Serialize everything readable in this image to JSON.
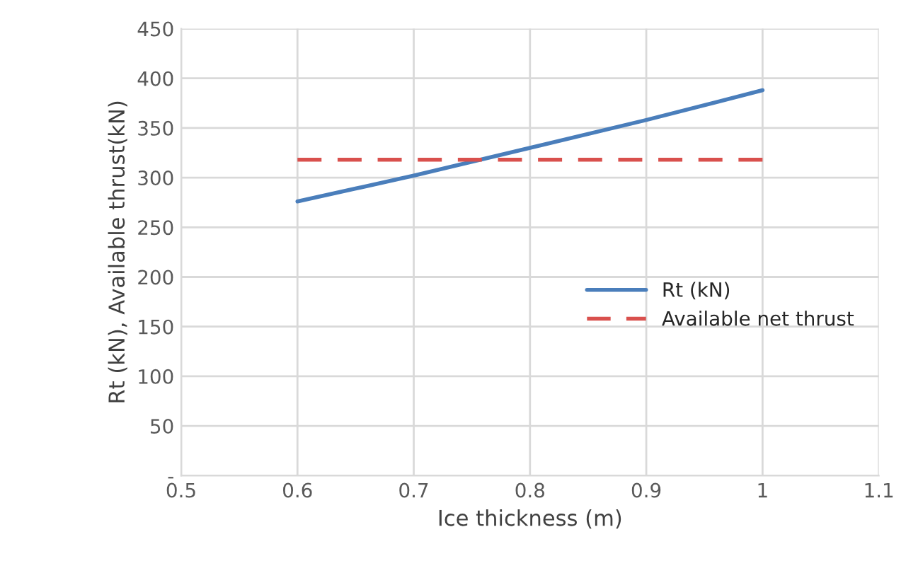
{
  "chart_data": {
    "type": "line",
    "xlabel": "Ice thickness (m)",
    "ylabel": "Rt (kN), Available thrust(kN)",
    "series": [
      {
        "name": "Rt (kN)",
        "color": "#4a7ebb",
        "x": [
          0.6,
          0.65,
          0.7,
          0.8,
          0.9,
          1.0
        ],
        "values": [
          276,
          289,
          302,
          330,
          358,
          388
        ],
        "line_style": "solid"
      },
      {
        "name": "Available net thrust",
        "color": "#d9504d",
        "x": [
          0.6,
          1.0
        ],
        "values": [
          318,
          318
        ],
        "line_style": "dashed"
      }
    ],
    "xlim": [
      0.5,
      1.1
    ],
    "xticks": [
      0.5,
      0.6,
      0.7,
      0.8,
      0.9,
      1,
      1.1
    ],
    "ylim": [
      0,
      450
    ],
    "yticks": [
      {
        "value": 0,
        "label": "-"
      },
      50,
      100,
      150,
      200,
      250,
      300,
      350,
      400,
      450
    ],
    "grid": true,
    "legend": "right",
    "marker": "none"
  }
}
